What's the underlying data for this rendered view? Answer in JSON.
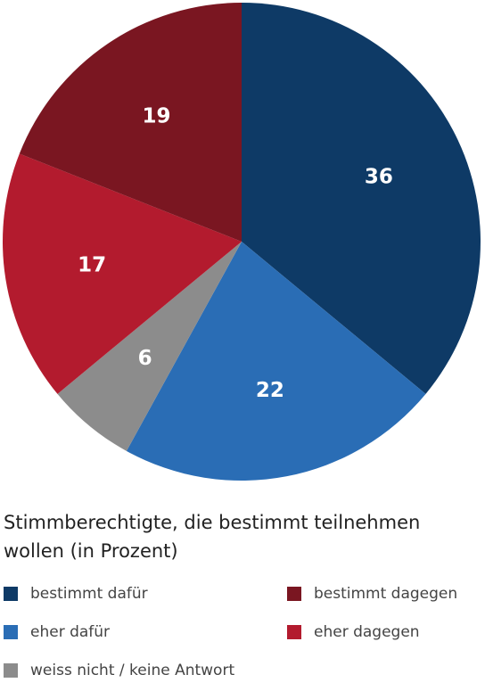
{
  "chart_data": {
    "type": "pie",
    "title": "",
    "subtitle": "Stimmberechtigte, die bestimmt teilnehmen wollen (in Prozent)",
    "categories": [
      "bestimmt dafür",
      "eher dafür",
      "weiss nicht / keine Antwort",
      "eher dagegen",
      "bestimmt dagegen"
    ],
    "values": [
      36,
      22,
      6,
      17,
      19
    ],
    "colors": [
      "#0e3a66",
      "#2a6db5",
      "#8c8c8c",
      "#b31b2e",
      "#7a1621"
    ],
    "start_angle": "12 o'clock",
    "direction": "clockwise",
    "data_labels": [
      "36",
      "22",
      "6",
      "17",
      "19"
    ],
    "legend": {
      "placement": "bottom",
      "columns": 2,
      "items": [
        {
          "label": "bestimmt dafür",
          "color": "#0e3a66"
        },
        {
          "label": "bestimmt dagegen",
          "color": "#7a1621"
        },
        {
          "label": "eher dafür",
          "color": "#2a6db5"
        },
        {
          "label": "eher dagegen",
          "color": "#b31b2e"
        },
        {
          "label": "weiss nicht / keine Antwort",
          "color": "#8c8c8c"
        }
      ]
    }
  }
}
